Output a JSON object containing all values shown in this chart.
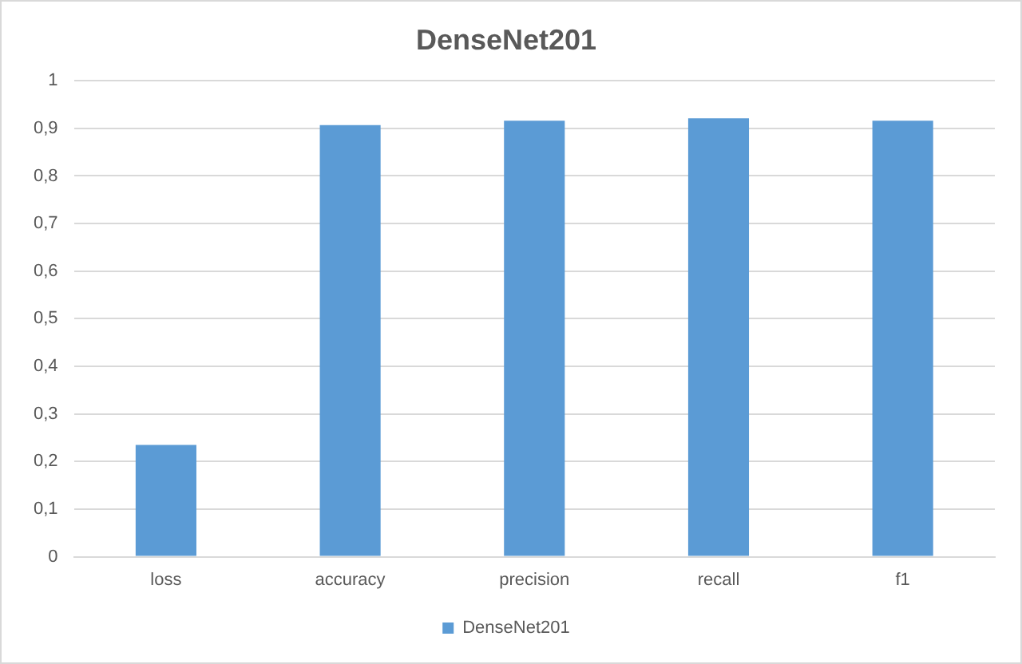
{
  "chart_data": {
    "type": "bar",
    "title": "DenseNet201",
    "categories": [
      "loss",
      "accuracy",
      "precision",
      "recall",
      "f1"
    ],
    "series": [
      {
        "name": "DenseNet201",
        "color": "#5b9bd5",
        "values": [
          0.235,
          0.907,
          0.916,
          0.921,
          0.916
        ]
      }
    ],
    "ylim": [
      0,
      1
    ],
    "yticks": [
      0,
      {
        "value": 0.1,
        "label": "0,1"
      },
      {
        "value": 0.2,
        "label": "0,2"
      },
      {
        "value": 0.3,
        "label": "0,3"
      },
      {
        "value": 0.4,
        "label": "0,4"
      },
      {
        "value": 0.5,
        "label": "0,5"
      },
      {
        "value": 0.6,
        "label": "0,6"
      },
      {
        "value": 0.7,
        "label": "0,7"
      },
      {
        "value": 0.8,
        "label": "0,8"
      },
      {
        "value": 0.9,
        "label": "0,9"
      },
      1
    ],
    "grid": "y",
    "legend": "bottom"
  }
}
